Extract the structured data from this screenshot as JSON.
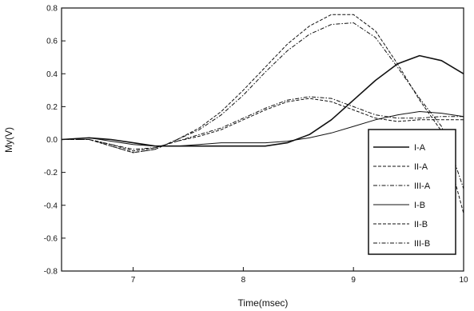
{
  "chart_data": {
    "type": "line",
    "title": "",
    "xlabel": "Time(msec)",
    "ylabel": "My(V)",
    "xlim": [
      6.35,
      10.0
    ],
    "ylim": [
      -0.8,
      0.8
    ],
    "xticks": [
      7,
      8,
      9,
      10
    ],
    "yticks": [
      -0.8,
      -0.6,
      -0.4,
      -0.2,
      0.0,
      0.2,
      0.4,
      0.6,
      0.8
    ],
    "xtick_labels": [
      "7",
      "8",
      "9",
      "10"
    ],
    "ytick_labels": [
      "-0.8",
      "-0.6",
      "-0.4",
      "-0.2",
      "0.0",
      "0.2",
      "0.4",
      "0.6",
      "0.8"
    ],
    "legend_position": "bottom-right",
    "grid": false,
    "series": [
      {
        "name": "I-A",
        "style": "solid",
        "width": 1.6,
        "x": [
          6.35,
          6.6,
          6.8,
          7.0,
          7.2,
          7.4,
          7.6,
          7.8,
          8.0,
          8.2,
          8.4,
          8.6,
          8.8,
          9.0,
          9.2,
          9.4,
          9.6,
          9.8,
          10.0
        ],
        "y": [
          0.0,
          0.01,
          0.0,
          -0.02,
          -0.04,
          -0.04,
          -0.04,
          -0.04,
          -0.04,
          -0.04,
          -0.02,
          0.03,
          0.12,
          0.24,
          0.36,
          0.46,
          0.51,
          0.48,
          0.4
        ]
      },
      {
        "name": "II-A",
        "style": "dashed",
        "width": 1,
        "x": [
          6.35,
          6.6,
          6.8,
          7.0,
          7.2,
          7.4,
          7.6,
          7.8,
          8.0,
          8.2,
          8.4,
          8.6,
          8.8,
          9.0,
          9.2,
          9.4,
          9.6,
          9.8,
          9.9,
          10.0
        ],
        "y": [
          0.0,
          0.0,
          -0.04,
          -0.08,
          -0.06,
          0.0,
          0.07,
          0.17,
          0.3,
          0.44,
          0.58,
          0.69,
          0.76,
          0.76,
          0.66,
          0.46,
          0.24,
          0.05,
          -0.2,
          -0.45
        ]
      },
      {
        "name": "III-A",
        "style": "dash-dot",
        "width": 1,
        "x": [
          6.35,
          6.6,
          6.8,
          7.0,
          7.2,
          7.4,
          7.6,
          7.8,
          8.0,
          8.2,
          8.4,
          8.6,
          8.8,
          9.0,
          9.2,
          9.4,
          9.6,
          9.8,
          9.9,
          10.0
        ],
        "y": [
          0.0,
          0.0,
          -0.04,
          -0.08,
          -0.06,
          0.0,
          0.06,
          0.15,
          0.27,
          0.41,
          0.54,
          0.64,
          0.7,
          0.71,
          0.62,
          0.44,
          0.25,
          0.08,
          -0.1,
          -0.3
        ]
      },
      {
        "name": "I-B",
        "style": "solid",
        "width": 1,
        "x": [
          6.35,
          6.6,
          6.8,
          7.0,
          7.2,
          7.4,
          7.6,
          7.8,
          8.0,
          8.2,
          8.4,
          8.6,
          8.8,
          9.0,
          9.2,
          9.4,
          9.6,
          9.8,
          10.0
        ],
        "y": [
          0.0,
          0.01,
          -0.01,
          -0.03,
          -0.04,
          -0.04,
          -0.03,
          -0.02,
          -0.02,
          -0.02,
          -0.01,
          0.01,
          0.04,
          0.08,
          0.12,
          0.15,
          0.17,
          0.16,
          0.14
        ]
      },
      {
        "name": "II-B",
        "style": "dashed",
        "width": 1,
        "x": [
          6.35,
          6.6,
          6.8,
          7.0,
          7.2,
          7.4,
          7.6,
          7.8,
          8.0,
          8.2,
          8.4,
          8.6,
          8.8,
          9.0,
          9.2,
          9.4,
          9.6,
          9.8,
          10.0
        ],
        "y": [
          0.0,
          0.0,
          -0.03,
          -0.07,
          -0.05,
          -0.01,
          0.02,
          0.06,
          0.12,
          0.18,
          0.23,
          0.25,
          0.23,
          0.18,
          0.13,
          0.11,
          0.12,
          0.12,
          0.12
        ]
      },
      {
        "name": "III-B",
        "style": "dash-dot",
        "width": 1,
        "x": [
          6.35,
          6.6,
          6.8,
          7.0,
          7.2,
          7.4,
          7.6,
          7.8,
          8.0,
          8.2,
          8.4,
          8.6,
          8.8,
          9.0,
          9.2,
          9.4,
          9.6,
          9.8,
          10.0
        ],
        "y": [
          0.0,
          0.0,
          -0.03,
          -0.06,
          -0.05,
          -0.01,
          0.03,
          0.07,
          0.13,
          0.19,
          0.24,
          0.26,
          0.25,
          0.2,
          0.15,
          0.13,
          0.13,
          0.14,
          0.14
        ]
      }
    ]
  },
  "colors": {
    "ink": "#111111",
    "background": "#ffffff"
  }
}
